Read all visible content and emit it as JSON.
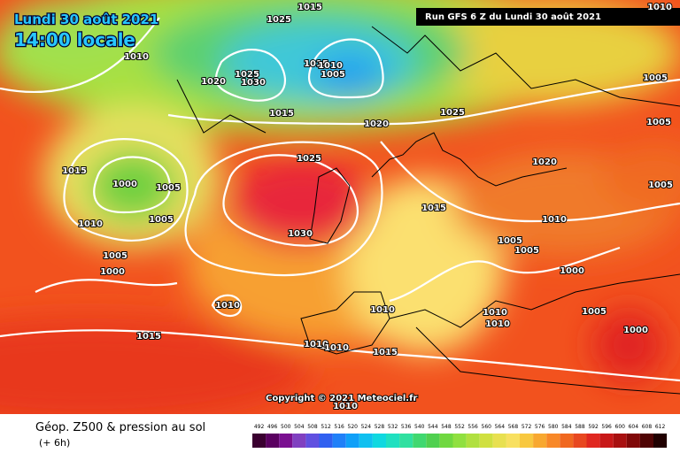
{
  "header": {
    "date": "Lundi 30 août 2021",
    "time": "14:00 locale",
    "run": "Run GFS 6 Z du Lundi 30 août 2021"
  },
  "isobar_labels": [
    1015,
    1025,
    1020,
    1025,
    1030,
    1015,
    1010,
    1005,
    1010,
    1015,
    1020,
    1025,
    1025,
    1020,
    1015,
    1000,
    1005,
    1010,
    1005,
    1030,
    1015,
    1010,
    1005,
    1005,
    1005,
    1000,
    1000,
    1010,
    1010,
    1005,
    1010,
    1010,
    1000,
    1015,
    1010,
    1010,
    1015,
    1010,
    1005,
    1005,
    1005,
    1010
  ],
  "copyright": "Copyright © 2021 Meteociel.fr",
  "legend": {
    "title": "Géop. Z500 & pression au sol",
    "step": "(+ 6h)",
    "scale": [
      492,
      496,
      500,
      504,
      508,
      512,
      516,
      520,
      524,
      528,
      532,
      536,
      540,
      544,
      548,
      552,
      556,
      560,
      564,
      568,
      572,
      576,
      580,
      584,
      588,
      592,
      596,
      600,
      604,
      608,
      612
    ]
  }
}
